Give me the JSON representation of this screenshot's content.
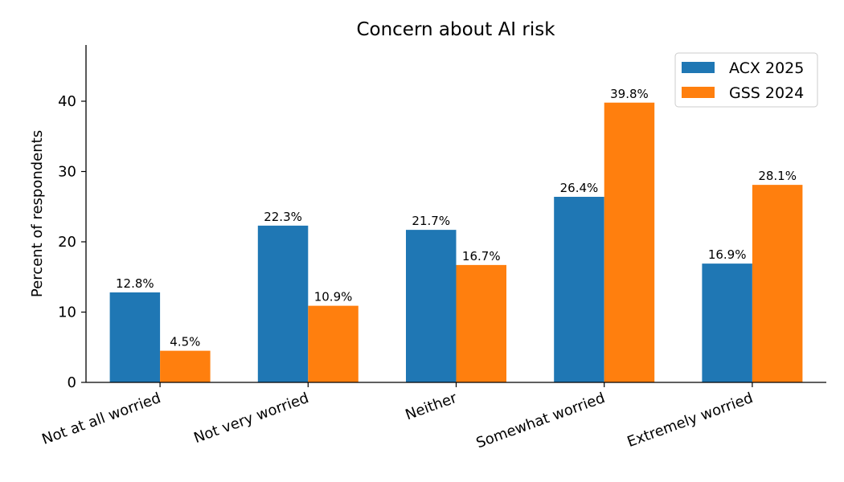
{
  "chart_data": {
    "type": "bar",
    "title": "Concern about AI risk",
    "xlabel": "",
    "ylabel": "Percent of respondents",
    "categories": [
      "Not at all worried",
      "Not very worried",
      "Neither",
      "Somewhat worried",
      "Extremely worried"
    ],
    "series": [
      {
        "name": "ACX 2025",
        "color": "#1f77b4",
        "values": [
          12.8,
          22.3,
          21.7,
          26.4,
          16.9
        ]
      },
      {
        "name": "GSS 2024",
        "color": "#ff7f0e",
        "values": [
          4.5,
          10.9,
          16.7,
          39.8,
          28.1
        ]
      }
    ],
    "ylim": [
      0,
      48
    ],
    "yticks": [
      0,
      10,
      20,
      30,
      40
    ],
    "value_label_suffix": "%",
    "legend_position": "top-right",
    "grid": false
  }
}
